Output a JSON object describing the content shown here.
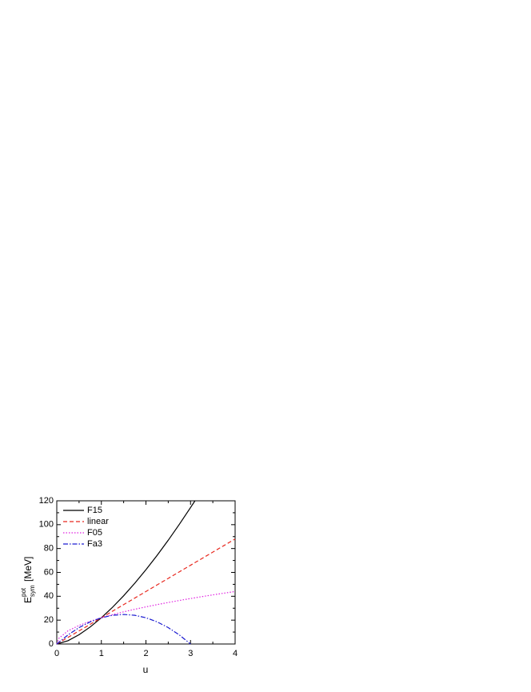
{
  "chart_data": {
    "type": "line",
    "xlabel": "u",
    "ylabel": {
      "main": "E",
      "sup": "pot",
      "sub": "sym",
      "unit": "[MeV]"
    },
    "xlim": [
      0,
      4
    ],
    "xticks": [
      0,
      1,
      2,
      3,
      4
    ],
    "ylim": [
      0,
      120
    ],
    "yticks": [
      0,
      20,
      40,
      60,
      80,
      100,
      120
    ],
    "legend": "upper left",
    "series": [
      {
        "name": "F15",
        "color": "#000000",
        "dash": "solid",
        "x": [
          0,
          0.25,
          0.5,
          0.75,
          1,
          1.25,
          1.5,
          1.75,
          2,
          2.25,
          2.5,
          2.75,
          3,
          3.1
        ],
        "y": [
          0,
          2.75,
          7.78,
          14.29,
          22,
          30.75,
          40.42,
          50.93,
          62.23,
          74.25,
          86.96,
          100.33,
          114.32,
          120
        ]
      },
      {
        "name": "linear",
        "color": "#e8281e",
        "dash": "dashed",
        "x": [
          0,
          0.25,
          0.5,
          0.75,
          1,
          1.25,
          1.5,
          1.75,
          2,
          2.25,
          2.5,
          2.75,
          3,
          3.25,
          3.5,
          3.75,
          4
        ],
        "y": [
          0,
          5.5,
          11,
          16.5,
          22,
          27.5,
          33,
          38.5,
          44,
          49.5,
          55,
          60.5,
          66,
          71.5,
          77,
          82.5,
          88
        ]
      },
      {
        "name": "F05",
        "color": "#e020e0",
        "dash": "dotted",
        "x": [
          0,
          0.05,
          0.25,
          0.5,
          0.75,
          1,
          1.25,
          1.5,
          1.75,
          2,
          2.25,
          2.5,
          2.75,
          3,
          3.25,
          3.5,
          3.75,
          4
        ],
        "y": [
          0,
          4.92,
          11,
          15.56,
          19.05,
          22,
          24.6,
          26.94,
          29.1,
          31.11,
          33,
          34.79,
          36.48,
          38.11,
          39.66,
          41.16,
          42.6,
          44
        ]
      },
      {
        "name": "Fa3",
        "color": "#1a1ad0",
        "dash": "dashdot",
        "x": [
          0,
          0.25,
          0.5,
          0.75,
          1,
          1.25,
          1.5,
          1.75,
          2,
          2.25,
          2.5,
          2.75,
          3
        ],
        "y": [
          0,
          7.56,
          13.75,
          18.56,
          22,
          24.06,
          24.75,
          24.06,
          22,
          18.56,
          13.75,
          7.56,
          0
        ]
      }
    ]
  }
}
